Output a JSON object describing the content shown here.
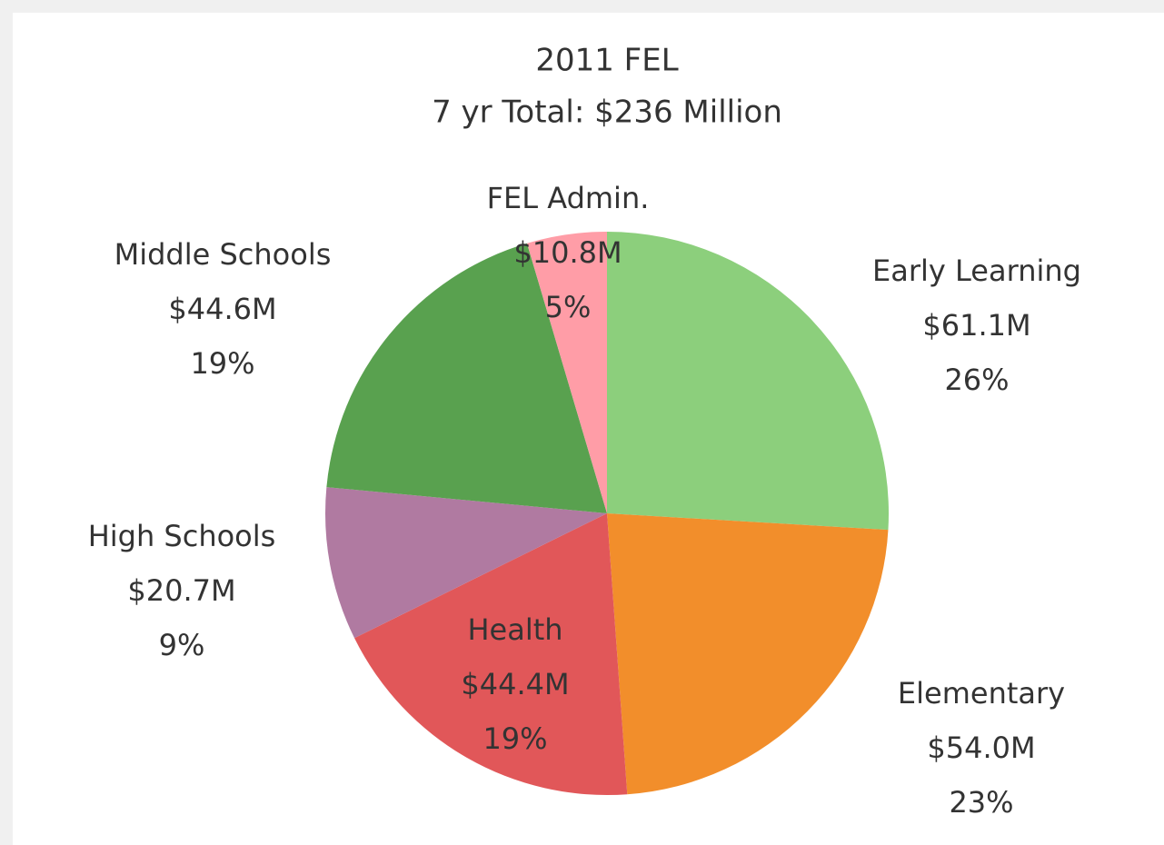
{
  "chart_data": {
    "type": "pie",
    "title": "2011 FEL",
    "subtitle": "7 yr Total: $236 Million",
    "categories": [
      "Early Learning",
      "Elementary",
      "Health",
      "High Schools",
      "Middle Schools",
      "FEL Admin."
    ],
    "values": [
      61.1,
      54.0,
      44.4,
      20.7,
      44.6,
      10.8
    ],
    "value_labels": [
      "$61.1M",
      "$54.0M",
      "$44.4M",
      "$20.7M",
      "$44.6M",
      "$10.8M"
    ],
    "percents": [
      26,
      23,
      19,
      9,
      19,
      5
    ],
    "percent_labels": [
      "26%",
      "23%",
      "19%",
      "9%",
      "19%",
      "5%"
    ],
    "colors": [
      "#8ccf7c",
      "#f28e2b",
      "#e15759",
      "#b07aa1",
      "#59a14f",
      "#ff9da7"
    ]
  }
}
